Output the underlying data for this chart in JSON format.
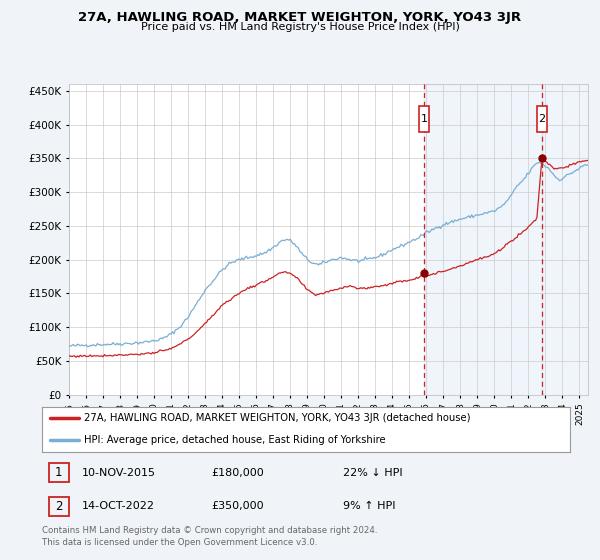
{
  "title": "27A, HAWLING ROAD, MARKET WEIGHTON, YORK, YO43 3JR",
  "subtitle": "Price paid vs. HM Land Registry's House Price Index (HPI)",
  "legend_line1": "27A, HAWLING ROAD, MARKET WEIGHTON, YORK, YO43 3JR (detached house)",
  "legend_line2": "HPI: Average price, detached house, East Riding of Yorkshire",
  "sale1_date": "10-NOV-2015",
  "sale1_price": "£180,000",
  "sale1_hpi": "22% ↓ HPI",
  "sale2_date": "14-OCT-2022",
  "sale2_price": "£350,000",
  "sale2_hpi": "9% ↑ HPI",
  "footnote": "Contains HM Land Registry data © Crown copyright and database right 2024.\nThis data is licensed under the Open Government Licence v3.0.",
  "hpi_color": "#7aaed4",
  "price_color": "#cc2222",
  "marker_color": "#880000",
  "dashed_line_color": "#cc2222",
  "background_color": "#f0f4f8",
  "plot_bg_color": "#ffffff",
  "grid_color": "#cccccc",
  "ylim": [
    0,
    460000
  ],
  "xlim_start": 1995.0,
  "xlim_end": 2025.5,
  "sale1_x": 2015.86,
  "sale1_y": 180000,
  "sale2_x": 2022.79,
  "sale2_y": 350000,
  "yticks": [
    0,
    50000,
    100000,
    150000,
    200000,
    250000,
    300000,
    350000,
    400000,
    450000
  ],
  "xticks": [
    1995,
    1996,
    1997,
    1998,
    1999,
    2000,
    2001,
    2002,
    2003,
    2004,
    2005,
    2006,
    2007,
    2008,
    2009,
    2010,
    2011,
    2012,
    2013,
    2014,
    2015,
    2016,
    2017,
    2018,
    2019,
    2020,
    2021,
    2022,
    2023,
    2024,
    2025
  ]
}
